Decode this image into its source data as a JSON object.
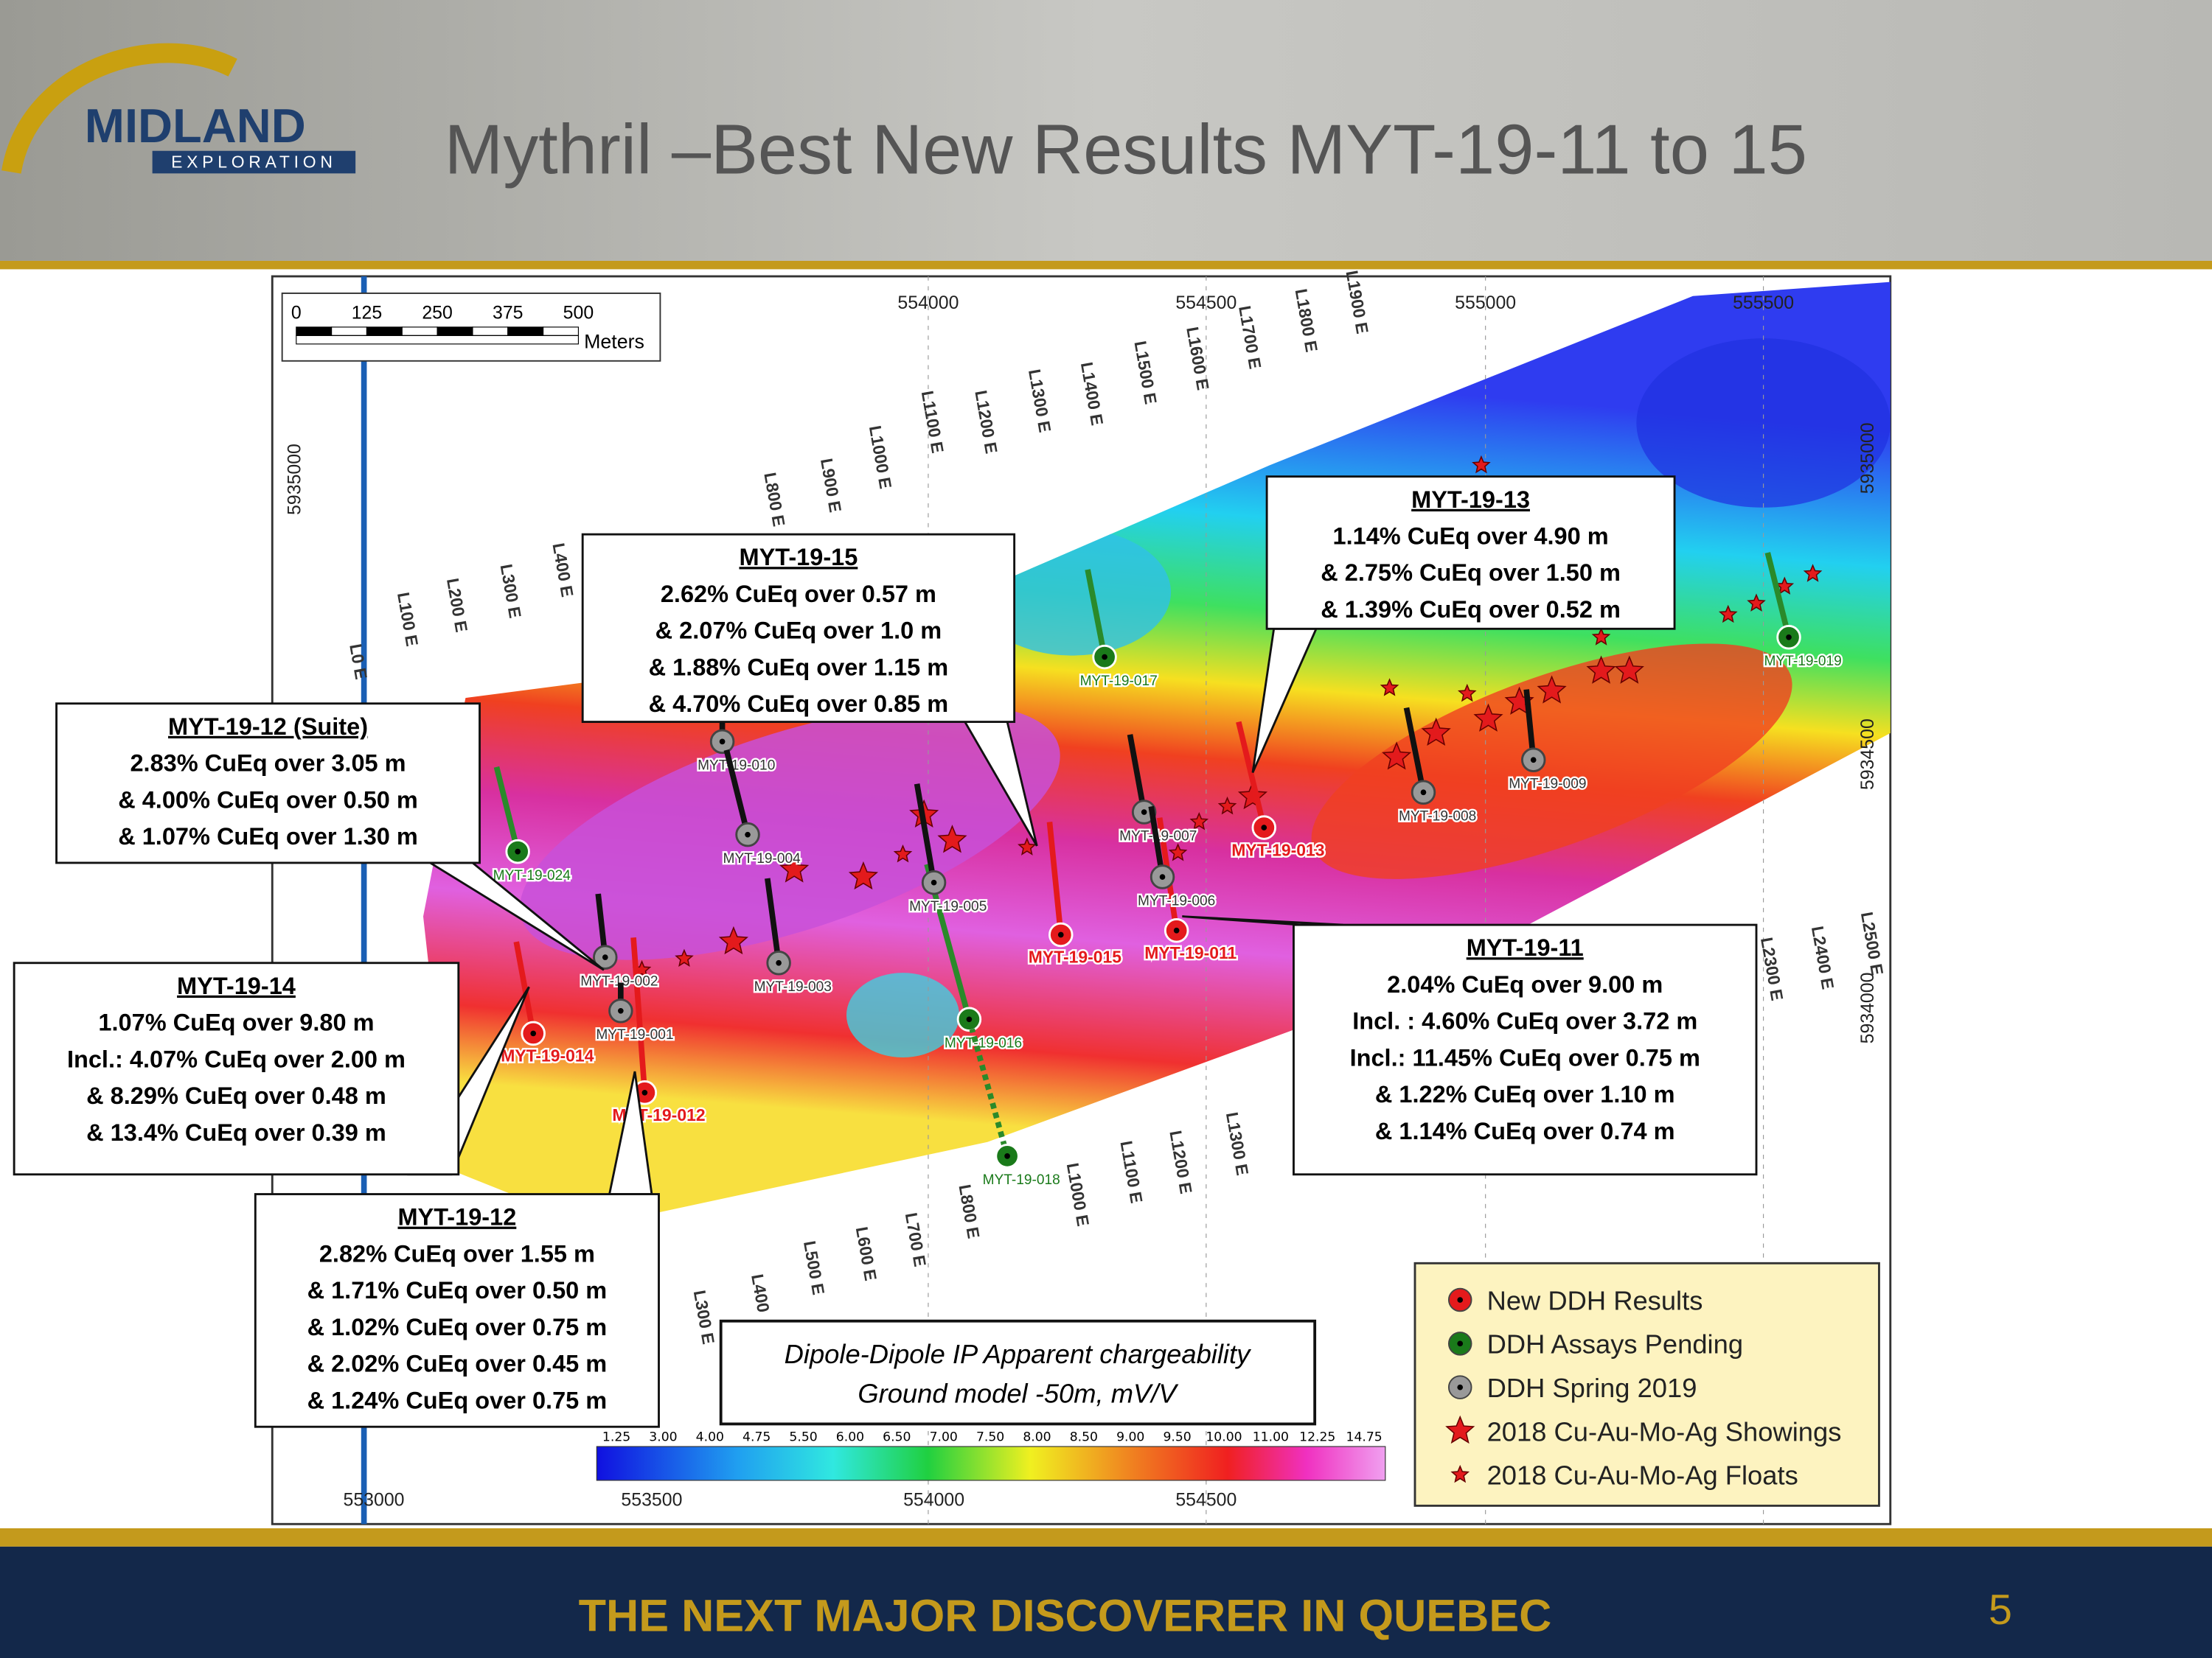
{
  "header": {
    "logo_name": "MIDLAND",
    "logo_sub": "EXPLORATION",
    "title": "Mythril –Best New Results MYT-19-11 to 15"
  },
  "map": {
    "scale_bar": {
      "ticks": [
        "0",
        "125",
        "250",
        "375",
        "500"
      ],
      "unit": "Meters"
    },
    "coords_top": [
      "554000",
      "554500",
      "555000",
      "555500"
    ],
    "coords_bottom": [
      "553000",
      "553500",
      "554000",
      "554500"
    ],
    "coords_right": [
      "5935000",
      "5934500",
      "5934000"
    ],
    "coords_left": [
      "5935000"
    ],
    "line_labels": [
      "L0 E",
      "L100 E",
      "L200 E",
      "L300 E",
      "L400 E",
      "L800 E",
      "L900 E",
      "L1000 E",
      "L1100 E",
      "L1200 E",
      "L1300 E",
      "L1400 E",
      "L1500 E",
      "L1600 E",
      "L1700 E",
      "L1800 E",
      "L1900 E",
      "L300 E",
      "L400",
      "L500 E",
      "L600 E",
      "L700 E",
      "L800 E",
      "L1000 E",
      "L1100 E",
      "L1200 E",
      "L1300 E",
      "L2300 E",
      "L2400 E",
      "L2500 E"
    ],
    "drillholes": [
      {
        "name": "MYT-19-014",
        "status": "new"
      },
      {
        "name": "MYT-19-012",
        "status": "new"
      },
      {
        "name": "MYT-19-015",
        "status": "new"
      },
      {
        "name": "MYT-19-011",
        "status": "new"
      },
      {
        "name": "MYT-19-013",
        "status": "new"
      },
      {
        "name": "MYT-19-024",
        "status": "pending"
      },
      {
        "name": "MYT-19-017",
        "status": "pending"
      },
      {
        "name": "MYT-19-016",
        "status": "pending"
      },
      {
        "name": "MYT-19-018",
        "status": "pending"
      },
      {
        "name": "MYT-19-019",
        "status": "pending"
      },
      {
        "name": "MYT-19-002",
        "status": "spring"
      },
      {
        "name": "MYT-19-001",
        "status": "spring"
      },
      {
        "name": "MYT-19-010",
        "status": "spring"
      },
      {
        "name": "MYT-19-004",
        "status": "spring"
      },
      {
        "name": "MYT-19-003",
        "status": "spring"
      },
      {
        "name": "MYT-19-005",
        "status": "spring"
      },
      {
        "name": "MYT-19-007",
        "status": "spring"
      },
      {
        "name": "MYT-19-006",
        "status": "spring"
      },
      {
        "name": "MYT-19-008",
        "status": "spring"
      },
      {
        "name": "MYT-19-009",
        "status": "spring"
      }
    ],
    "callouts": [
      {
        "title": "MYT-19-13",
        "lines": [
          "1.14% CuEq over 4.90 m",
          "& 2.75% CuEq over 1.50 m",
          "& 1.39% CuEq over 0.52 m"
        ]
      },
      {
        "title": "MYT-19-15",
        "lines": [
          "2.62% CuEq over 0.57 m",
          "& 2.07% CuEq over 1.0 m",
          "& 1.88% CuEq over 1.15 m",
          "& 4.70% CuEq over 0.85 m"
        ]
      },
      {
        "title": "MYT-19-12 (Suite)",
        "lines": [
          "2.83% CuEq over 3.05 m",
          "& 4.00% CuEq over 0.50 m",
          "& 1.07% CuEq over 1.30 m"
        ]
      },
      {
        "title": "MYT-19-14",
        "lines": [
          "1.07% CuEq over 9.80 m",
          "Incl.: 4.07% CuEq over 2.00 m",
          "& 8.29% CuEq over 0.48 m",
          "& 13.4% CuEq over 0.39 m"
        ]
      },
      {
        "title": "MYT-19-11",
        "lines": [
          "2.04% CuEq over 9.00 m",
          "Incl. : 4.60% CuEq over 3.72 m",
          "Incl.: 11.45% CuEq over  0.75 m",
          "& 1.22% CuEq over 1.10 m",
          "& 1.14% CuEq over 0.74 m"
        ]
      },
      {
        "title": "MYT-19-12",
        "lines": [
          "2.82% CuEq over 1.55 m",
          "& 1.71% CuEq over 0.50 m",
          "& 1.02% CuEq over 0.75 m",
          "& 2.02% CuEq over 0.45 m",
          "& 1.24% CuEq over 0.75 m"
        ]
      }
    ],
    "model_note": [
      "Dipole-Dipole IP Apparent chargeability",
      "Ground model -50m, mV/V"
    ],
    "colorbar": [
      "1.25",
      "3.00",
      "4.00",
      "4.75",
      "5.50",
      "6.00",
      "6.50",
      "7.00",
      "7.50",
      "8.00",
      "8.50",
      "9.00",
      "9.50",
      "10.00",
      "11.00",
      "12.25",
      "14.75"
    ],
    "legend": [
      "New DDH Results",
      "DDH Assays Pending",
      "DDH Spring 2019",
      "2018 Cu-Au-Mo-Ag Showings",
      "2018 Cu-Au-Mo-Ag Floats"
    ]
  },
  "footer": {
    "tagline": "THE NEXT MAJOR DISCOVERER IN QUEBEC",
    "page": "5"
  }
}
